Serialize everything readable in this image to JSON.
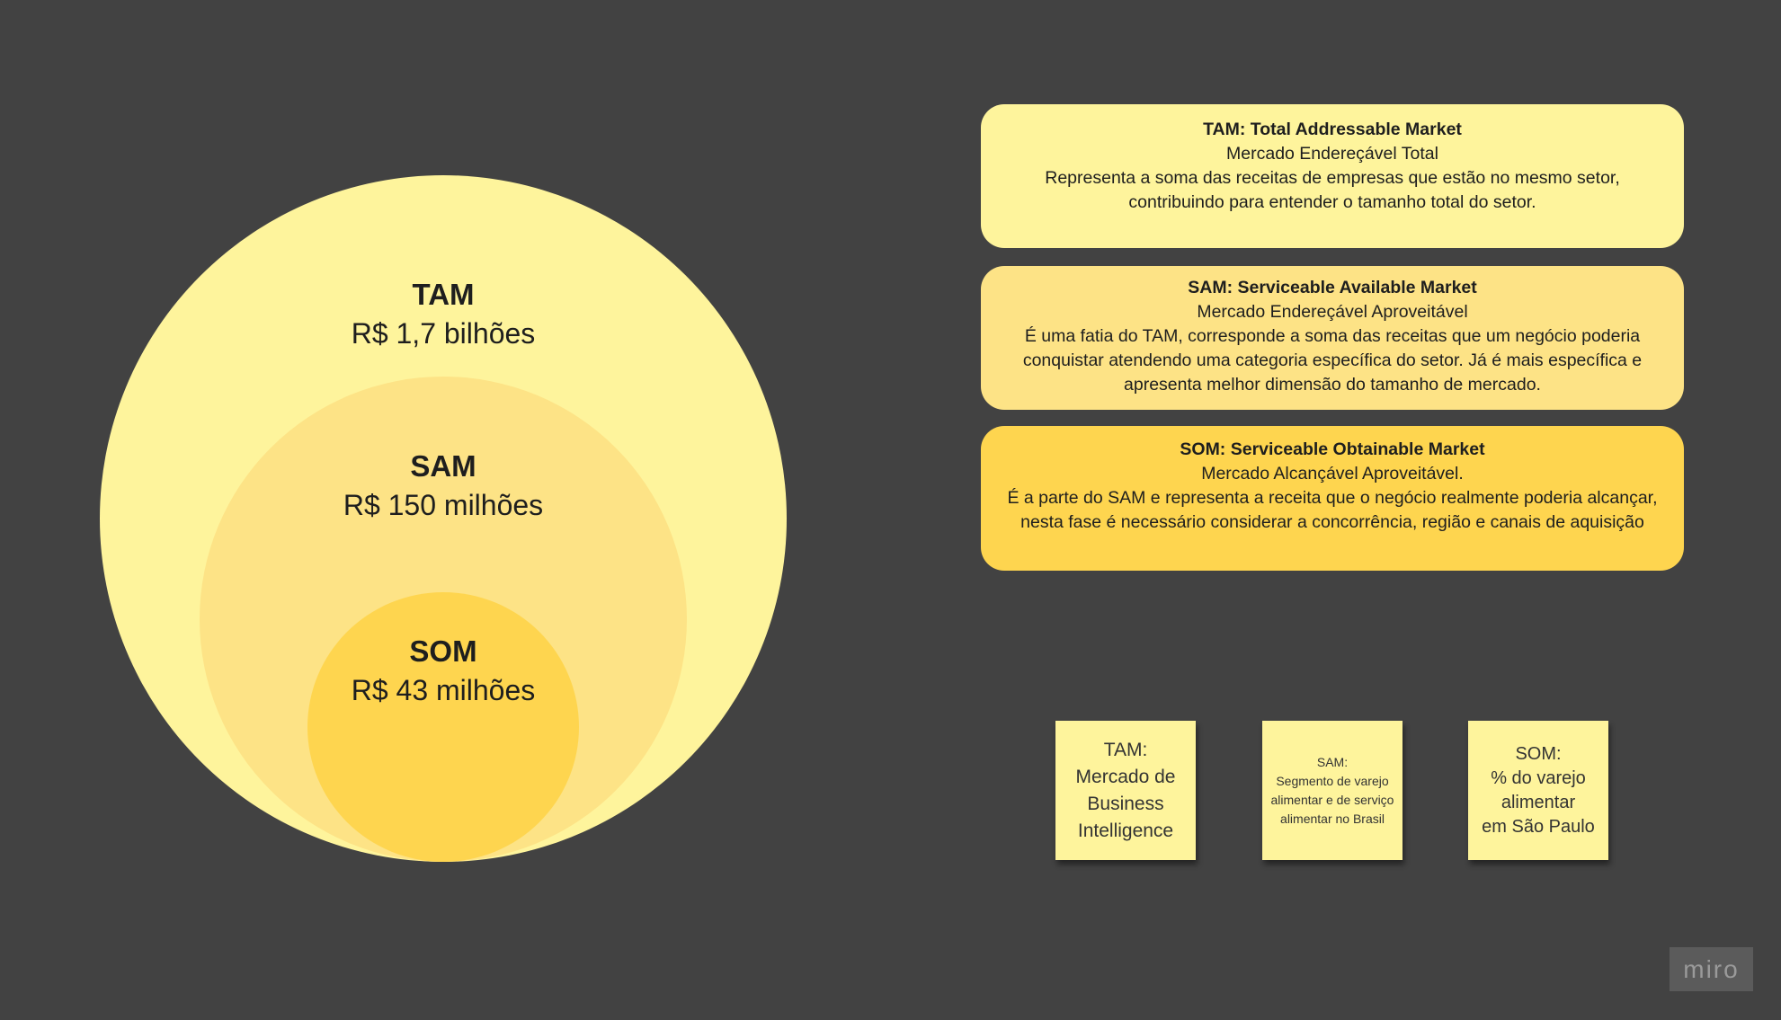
{
  "circles": {
    "tam": {
      "name": "TAM",
      "value": "R$ 1,7 bilhões"
    },
    "sam": {
      "name": "SAM",
      "value": "R$ 150 milhões"
    },
    "som": {
      "name": "SOM",
      "value": "R$ 43 milhões"
    }
  },
  "cards": {
    "tam": {
      "title": "TAM: Total Addressable Market",
      "subtitle": "Mercado Endereçável Total",
      "description": "Representa a soma das receitas de empresas que estão no mesmo setor, contribuindo para entender o tamanho total do setor."
    },
    "sam": {
      "title": "SAM: Serviceable Available Market",
      "subtitle": "Mercado Endereçável Aproveitável",
      "description": "É uma fatia do TAM, corresponde a soma das receitas que um negócio poderia conquistar atendendo uma categoria específica do setor. Já é mais específica e apresenta melhor dimensão do tamanho de mercado."
    },
    "som": {
      "title": "SOM: Serviceable Obtainable Market",
      "subtitle": "Mercado Alcançável Aproveitável.",
      "description": "É a parte do SAM e representa a receita que o negócio realmente poderia alcançar, nesta fase é necessário considerar a concorrência, região e canais de aquisição"
    }
  },
  "stickies": {
    "tam": "TAM:\nMercado de Business Intelligence",
    "sam": "SAM:\nSegmento de varejo alimentar e de serviço alimentar no Brasil",
    "som": "SOM:\n% do varejo alimentar\nem São Paulo"
  },
  "logo": "miro",
  "colors": {
    "background": "#424242",
    "tam": "#fef49c",
    "sam": "#fde386",
    "som": "#fed54f"
  }
}
